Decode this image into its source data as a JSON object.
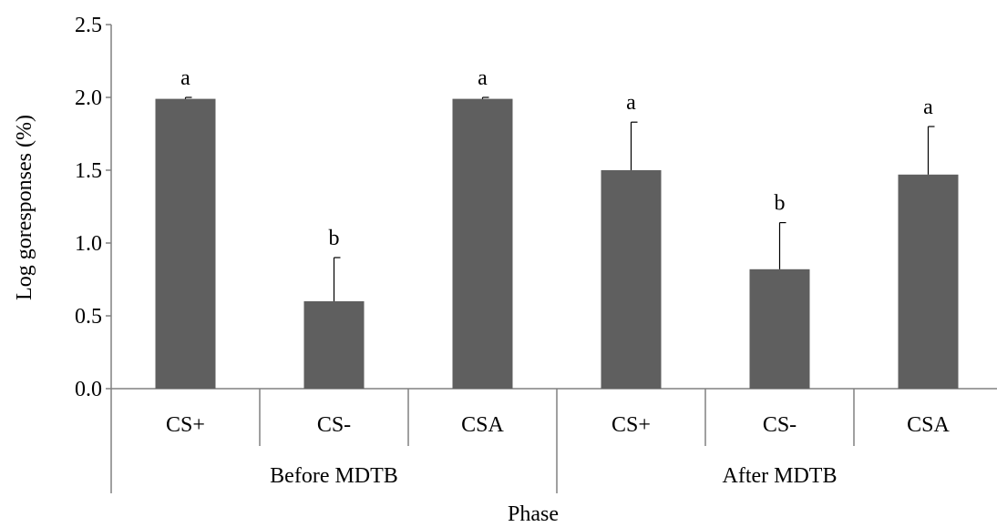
{
  "chart_data": {
    "type": "bar",
    "categories": [
      "CS+",
      "CS-",
      "CSA",
      "CS+",
      "CS-",
      "CSA"
    ],
    "groups": [
      {
        "label": "Before MDTB",
        "categories": [
          "CS+",
          "CS-",
          "CSA"
        ]
      },
      {
        "label": "After MDTB",
        "categories": [
          "CS+",
          "CS-",
          "CSA"
        ]
      }
    ],
    "values": [
      1.99,
      0.6,
      1.99,
      1.5,
      0.82,
      1.47
    ],
    "errors": [
      0.01,
      0.3,
      0.01,
      0.33,
      0.32,
      0.33
    ],
    "significance": [
      "a",
      "b",
      "a",
      "a",
      "b",
      "a"
    ],
    "ylabel": "Log goresponses (%)",
    "xlabel": "Phase",
    "ylim": [
      0.0,
      2.5
    ],
    "yticks": [
      "0.0",
      "0.5",
      "1.0",
      "1.5",
      "2.0",
      "2.5"
    ],
    "bar_color": "#5f5f5f",
    "grid": false,
    "legend": "none"
  }
}
